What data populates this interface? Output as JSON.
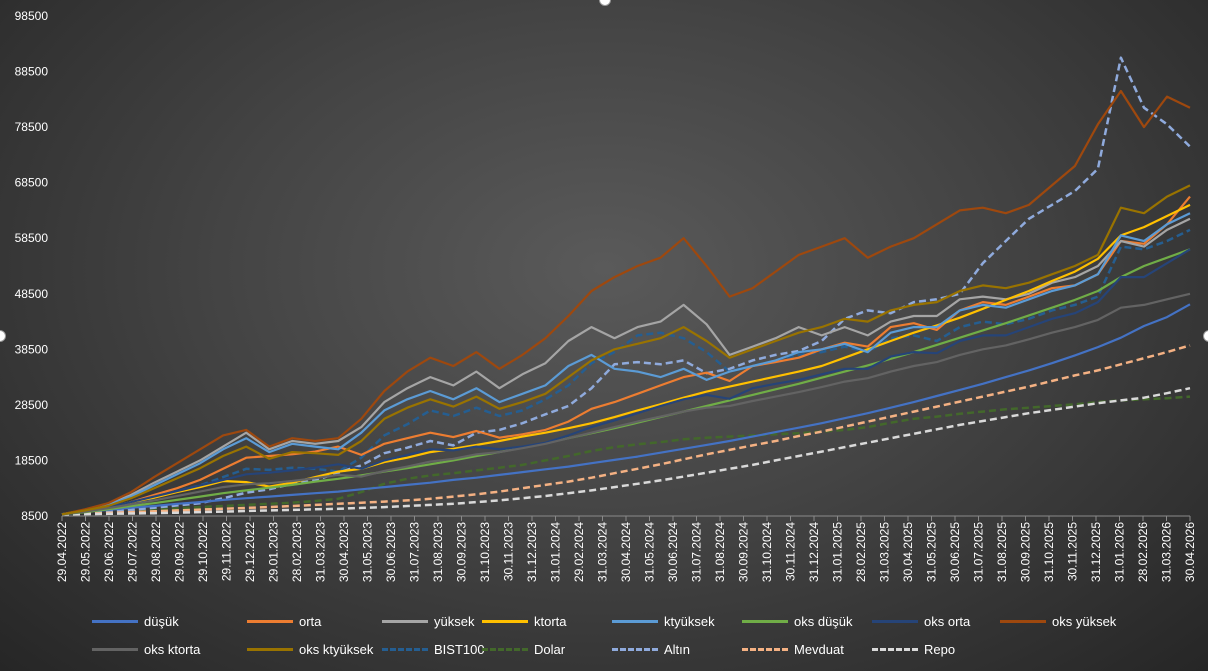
{
  "chart_data": {
    "type": "line",
    "title": "",
    "xlabel": "",
    "ylabel": "",
    "ylim": [
      8500,
      98500
    ],
    "y_ticks": [
      "8500",
      "18500",
      "28500",
      "38500",
      "48500",
      "58500",
      "68500",
      "78500",
      "88500",
      "98500"
    ],
    "x_ticks": [
      "29.04.2022",
      "29.05.2022",
      "29.06.2022",
      "29.07.2022",
      "29.08.2022",
      "29.09.2022",
      "29.10.2022",
      "29.11.2022",
      "29.12.2022",
      "29.01.2023",
      "28.02.2023",
      "31.03.2023",
      "30.04.2023",
      "31.05.2023",
      "30.06.2023",
      "31.07.2023",
      "31.08.2023",
      "30.09.2023",
      "31.10.2023",
      "30.11.2023",
      "31.12.2023",
      "31.01.2024",
      "29.02.2024",
      "31.03.2024",
      "30.04.2024",
      "31.05.2024",
      "30.06.2024",
      "31.07.2024",
      "31.08.2024",
      "30.09.2024",
      "31.10.2024",
      "30.11.2024",
      "31.12.2024",
      "31.01.2025",
      "28.02.2025",
      "31.03.2025",
      "30.04.2025",
      "31.05.2025",
      "30.06.2025",
      "31.07.2025",
      "31.08.2025",
      "30.09.2025",
      "31.10.2025",
      "30.11.2025",
      "31.12.2025",
      "31.01.2026",
      "28.02.2026",
      "31.03.2026",
      "30.04.2026"
    ],
    "grid": false,
    "legend_position": "bottom",
    "series": [
      {
        "name": "düşük",
        "color": "#4472C4",
        "dash": "solid",
        "values": [
          8800,
          9300,
          9600,
          10000,
          10300,
          10700,
          11000,
          11400,
          11700,
          12000,
          12300,
          12600,
          12900,
          13300,
          13700,
          14100,
          14500,
          15000,
          15400,
          15900,
          16400,
          16900,
          17400,
          18000,
          18600,
          19200,
          19900,
          20600,
          21300,
          22000,
          22800,
          23600,
          24400,
          25200,
          26100,
          27000,
          28000,
          29000,
          30100,
          31200,
          32300,
          33500,
          34700,
          36000,
          37400,
          38900,
          40600,
          42700,
          44300,
          46600
        ]
      },
      {
        "name": "orta",
        "color": "#ED7D31",
        "dash": "solid",
        "values": [
          8800,
          9400,
          10000,
          11000,
          12300,
          13500,
          15000,
          17000,
          19000,
          19300,
          19600,
          20100,
          21000,
          19500,
          21500,
          22500,
          23500,
          22700,
          23800,
          22600,
          23200,
          24000,
          25500,
          27800,
          29000,
          30500,
          32000,
          33500,
          34300,
          32800,
          35500,
          36200,
          37000,
          38500,
          39700,
          39000,
          42500,
          43200,
          42000,
          45500,
          47000,
          46500,
          48000,
          49500,
          50000,
          52000,
          58000,
          57500,
          61000,
          66000
        ]
      },
      {
        "name": "yüksek",
        "color": "#A5A5A5",
        "dash": "solid",
        "values": [
          8800,
          9600,
          10500,
          12300,
          14500,
          16500,
          18500,
          21000,
          23500,
          20500,
          22000,
          21500,
          22000,
          24500,
          29000,
          31500,
          33500,
          32000,
          34500,
          31500,
          34000,
          36000,
          40000,
          42500,
          40500,
          42500,
          43500,
          46500,
          43000,
          37500,
          39000,
          40500,
          42500,
          41000,
          42500,
          41000,
          43500,
          44500,
          44500,
          47500,
          48000,
          47500,
          48500,
          50500,
          51500,
          53500,
          58000,
          57000,
          60000,
          62000
        ]
      },
      {
        "name": "ktorta",
        "color": "#FFC000",
        "dash": "solid",
        "values": [
          8800,
          9400,
          10100,
          11000,
          11800,
          12800,
          13700,
          14800,
          14600,
          13800,
          14500,
          15500,
          16500,
          17000,
          18200,
          19000,
          20000,
          20600,
          21300,
          22000,
          22800,
          23500,
          24300,
          25200,
          26300,
          27500,
          28600,
          29800,
          30900,
          31800,
          32700,
          33600,
          34500,
          35500,
          37000,
          38500,
          40000,
          41500,
          42800,
          44200,
          45800,
          47400,
          49000,
          50800,
          52500,
          54800,
          59000,
          60500,
          62500,
          64500
        ]
      },
      {
        "name": "ktyüksek",
        "color": "#5B9BD5",
        "dash": "solid",
        "values": [
          8800,
          9600,
          10500,
          12000,
          14000,
          16000,
          18000,
          20500,
          22500,
          20000,
          21500,
          21000,
          20500,
          23500,
          27500,
          29500,
          31000,
          29500,
          31500,
          29000,
          30500,
          32000,
          35500,
          37500,
          35000,
          34500,
          33500,
          35000,
          33000,
          34500,
          35500,
          36500,
          38000,
          38500,
          39500,
          38000,
          41500,
          42500,
          42500,
          45500,
          46500,
          46000,
          47500,
          49000,
          50000,
          52000,
          59000,
          58000,
          61000,
          63000
        ]
      },
      {
        "name": "oks düşük",
        "color": "#70AD47",
        "dash": "solid",
        "values": [
          8800,
          9200,
          9700,
          10300,
          10800,
          11400,
          12000,
          12600,
          13100,
          13600,
          14100,
          14700,
          15200,
          15800,
          16500,
          17100,
          17800,
          18500,
          19300,
          20000,
          20800,
          21600,
          22500,
          23400,
          24300,
          25300,
          26300,
          27300,
          28300,
          29300,
          30300,
          31300,
          32300,
          33400,
          34500,
          35600,
          36800,
          38000,
          39300,
          40600,
          41900,
          43200,
          44600,
          46000,
          47400,
          49000,
          51500,
          53500,
          55000,
          56500
        ]
      },
      {
        "name": "oks orta",
        "color": "#264478",
        "dash": "solid",
        "values": [
          8800,
          9500,
          10200,
          11000,
          12000,
          13000,
          14000,
          15000,
          16000,
          16300,
          16700,
          17200,
          17800,
          17000,
          18500,
          19500,
          20500,
          20300,
          21000,
          20500,
          21000,
          21700,
          23000,
          24500,
          25700,
          27000,
          28300,
          29500,
          30300,
          29600,
          31500,
          32300,
          33000,
          34000,
          35000,
          35000,
          37200,
          38000,
          37800,
          40000,
          41000,
          41000,
          42500,
          44000,
          45000,
          47000,
          51500,
          51500,
          54000,
          56500
        ]
      },
      {
        "name": "oks yüksek",
        "color": "#9E480E",
        "dash": "solid",
        "values": [
          8800,
          9700,
          10800,
          12800,
          15500,
          18000,
          20500,
          23000,
          24000,
          21000,
          22500,
          22000,
          22500,
          26000,
          31000,
          34500,
          37000,
          35500,
          38000,
          35000,
          37500,
          40500,
          44500,
          49000,
          51500,
          53500,
          55000,
          58500,
          53500,
          48000,
          49500,
          52500,
          55500,
          57000,
          58500,
          55000,
          57000,
          58500,
          61000,
          63500,
          64000,
          63000,
          64500,
          68000,
          71500,
          79000,
          85000,
          78500,
          84000,
          82000
        ]
      },
      {
        "name": "oks ktorta",
        "color": "#636363",
        "dash": "solid",
        "values": [
          8800,
          9300,
          9900,
          10600,
          11300,
          12100,
          12900,
          13700,
          14200,
          14400,
          14800,
          15300,
          15900,
          15600,
          16600,
          17400,
          18300,
          18800,
          19600,
          20000,
          20700,
          21500,
          22500,
          23500,
          24500,
          25500,
          26400,
          27300,
          28000,
          28300,
          29200,
          30000,
          30800,
          31700,
          32700,
          33300,
          34500,
          35500,
          36200,
          37500,
          38500,
          39200,
          40300,
          41500,
          42500,
          43800,
          46000,
          46500,
          47500,
          48500
        ]
      },
      {
        "name": "oks ktyüksek",
        "color": "#997300",
        "dash": "solid",
        "values": [
          8800,
          9500,
          10300,
          11700,
          13500,
          15300,
          17100,
          19300,
          21000,
          18800,
          20000,
          19800,
          19500,
          22000,
          26000,
          28000,
          29500,
          28200,
          30000,
          27800,
          29000,
          30500,
          33500,
          36500,
          38500,
          39500,
          40500,
          42500,
          40000,
          37000,
          38500,
          40000,
          41500,
          42500,
          44000,
          43500,
          45500,
          46500,
          47000,
          49000,
          50000,
          49500,
          50500,
          52000,
          53500,
          55500,
          64000,
          63000,
          66000,
          68000
        ]
      },
      {
        "name": "BIST100",
        "color": "#255E91",
        "dash": "dash",
        "values": [
          8800,
          9200,
          9600,
          10400,
          11800,
          13000,
          14000,
          15500,
          17000,
          16800,
          17200,
          17000,
          16500,
          19000,
          23000,
          25000,
          27500,
          26500,
          28000,
          26500,
          27500,
          29500,
          32000,
          36000,
          38000,
          41000,
          41500,
          40500,
          38000,
          34500,
          35500,
          36500,
          37500,
          38000,
          39000,
          38000,
          40500,
          41000,
          40000,
          42500,
          43500,
          43000,
          44000,
          45500,
          46500,
          48000,
          57000,
          56500,
          58000,
          60000
        ]
      },
      {
        "name": "Dolar",
        "color": "#43682B",
        "dash": "dash",
        "values": [
          8800,
          9000,
          9200,
          9500,
          9700,
          9900,
          10100,
          10300,
          10500,
          10700,
          10900,
          11200,
          11600,
          12800,
          14300,
          15200,
          15800,
          16200,
          16700,
          17200,
          17700,
          18500,
          19300,
          20200,
          20900,
          21400,
          21800,
          22300,
          22600,
          22800,
          23000,
          23200,
          23400,
          23700,
          24000,
          24500,
          25300,
          26000,
          26400,
          26900,
          27300,
          27700,
          28000,
          28300,
          28600,
          29000,
          29300,
          29500,
          29700,
          30000
        ]
      },
      {
        "name": "Altın",
        "color": "#8FAADC",
        "dash": "dash",
        "values": [
          8800,
          9000,
          9200,
          9600,
          10000,
          10400,
          10800,
          11700,
          12700,
          13300,
          14300,
          14900,
          16300,
          17600,
          19800,
          20800,
          22000,
          21200,
          23500,
          24000,
          25200,
          26800,
          28300,
          31500,
          35800,
          36200,
          35800,
          36500,
          34200,
          35000,
          36500,
          37500,
          38200,
          40000,
          44000,
          45500,
          45000,
          47000,
          47500,
          48500,
          54000,
          58000,
          62000,
          64500,
          67000,
          71000,
          91000,
          82000,
          79000,
          75000
        ]
      },
      {
        "name": "Mevduat",
        "color": "#F4B183",
        "dash": "dash",
        "values": [
          8800,
          8900,
          9050,
          9200,
          9350,
          9500,
          9650,
          9800,
          9950,
          10100,
          10300,
          10500,
          10700,
          10900,
          11100,
          11300,
          11600,
          12000,
          12400,
          12900,
          13500,
          14100,
          14700,
          15400,
          16200,
          17000,
          17800,
          18700,
          19600,
          20400,
          21200,
          22000,
          22900,
          23700,
          24600,
          25500,
          26400,
          27300,
          28200,
          29100,
          30000,
          30900,
          31800,
          32800,
          33800,
          34700,
          35800,
          36900,
          38000,
          39200
        ]
      },
      {
        "name": "Repo",
        "color": "#D9D9D9",
        "dash": "dash",
        "values": [
          8800,
          8850,
          8900,
          8950,
          9000,
          9100,
          9200,
          9300,
          9400,
          9500,
          9600,
          9700,
          9800,
          9950,
          10100,
          10300,
          10500,
          10700,
          11000,
          11300,
          11700,
          12100,
          12600,
          13100,
          13700,
          14300,
          14900,
          15600,
          16300,
          17000,
          17700,
          18500,
          19300,
          20100,
          20900,
          21700,
          22500,
          23300,
          24100,
          24900,
          25600,
          26300,
          27000,
          27600,
          28200,
          28800,
          29300,
          29800,
          30600,
          31500
        ]
      }
    ]
  }
}
